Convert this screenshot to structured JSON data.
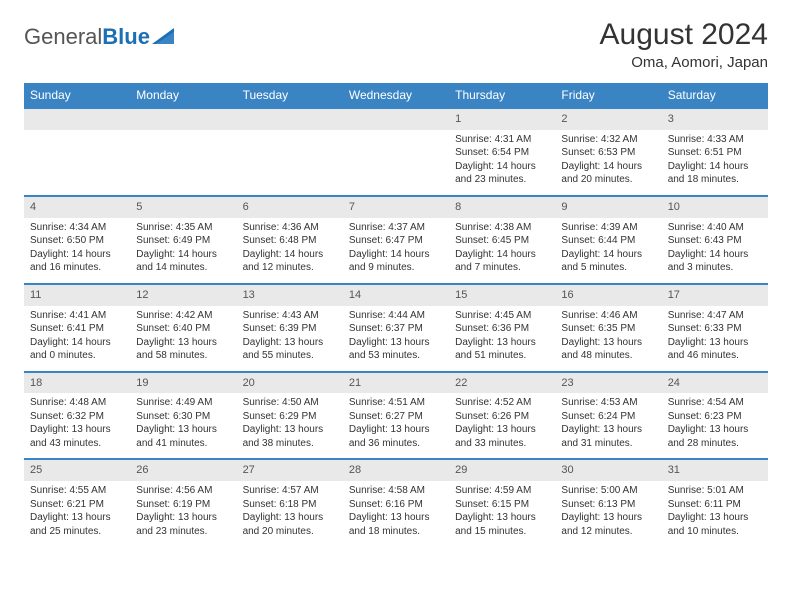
{
  "brand": {
    "part1": "General",
    "part2": "Blue"
  },
  "header": {
    "month": "August 2024",
    "location": "Oma, Aomori, Japan"
  },
  "colors": {
    "header_bg": "#3b84c4",
    "band_bg": "#e9e9e9",
    "border": "#3b84c4",
    "text": "#333333",
    "brand_blue": "#1b6fb5"
  },
  "dayNames": [
    "Sunday",
    "Monday",
    "Tuesday",
    "Wednesday",
    "Thursday",
    "Friday",
    "Saturday"
  ],
  "weeks": [
    [
      null,
      null,
      null,
      null,
      {
        "n": "1",
        "sr": "Sunrise: 4:31 AM",
        "ss": "Sunset: 6:54 PM",
        "dl": "Daylight: 14 hours and 23 minutes."
      },
      {
        "n": "2",
        "sr": "Sunrise: 4:32 AM",
        "ss": "Sunset: 6:53 PM",
        "dl": "Daylight: 14 hours and 20 minutes."
      },
      {
        "n": "3",
        "sr": "Sunrise: 4:33 AM",
        "ss": "Sunset: 6:51 PM",
        "dl": "Daylight: 14 hours and 18 minutes."
      }
    ],
    [
      {
        "n": "4",
        "sr": "Sunrise: 4:34 AM",
        "ss": "Sunset: 6:50 PM",
        "dl": "Daylight: 14 hours and 16 minutes."
      },
      {
        "n": "5",
        "sr": "Sunrise: 4:35 AM",
        "ss": "Sunset: 6:49 PM",
        "dl": "Daylight: 14 hours and 14 minutes."
      },
      {
        "n": "6",
        "sr": "Sunrise: 4:36 AM",
        "ss": "Sunset: 6:48 PM",
        "dl": "Daylight: 14 hours and 12 minutes."
      },
      {
        "n": "7",
        "sr": "Sunrise: 4:37 AM",
        "ss": "Sunset: 6:47 PM",
        "dl": "Daylight: 14 hours and 9 minutes."
      },
      {
        "n": "8",
        "sr": "Sunrise: 4:38 AM",
        "ss": "Sunset: 6:45 PM",
        "dl": "Daylight: 14 hours and 7 minutes."
      },
      {
        "n": "9",
        "sr": "Sunrise: 4:39 AM",
        "ss": "Sunset: 6:44 PM",
        "dl": "Daylight: 14 hours and 5 minutes."
      },
      {
        "n": "10",
        "sr": "Sunrise: 4:40 AM",
        "ss": "Sunset: 6:43 PM",
        "dl": "Daylight: 14 hours and 3 minutes."
      }
    ],
    [
      {
        "n": "11",
        "sr": "Sunrise: 4:41 AM",
        "ss": "Sunset: 6:41 PM",
        "dl": "Daylight: 14 hours and 0 minutes."
      },
      {
        "n": "12",
        "sr": "Sunrise: 4:42 AM",
        "ss": "Sunset: 6:40 PM",
        "dl": "Daylight: 13 hours and 58 minutes."
      },
      {
        "n": "13",
        "sr": "Sunrise: 4:43 AM",
        "ss": "Sunset: 6:39 PM",
        "dl": "Daylight: 13 hours and 55 minutes."
      },
      {
        "n": "14",
        "sr": "Sunrise: 4:44 AM",
        "ss": "Sunset: 6:37 PM",
        "dl": "Daylight: 13 hours and 53 minutes."
      },
      {
        "n": "15",
        "sr": "Sunrise: 4:45 AM",
        "ss": "Sunset: 6:36 PM",
        "dl": "Daylight: 13 hours and 51 minutes."
      },
      {
        "n": "16",
        "sr": "Sunrise: 4:46 AM",
        "ss": "Sunset: 6:35 PM",
        "dl": "Daylight: 13 hours and 48 minutes."
      },
      {
        "n": "17",
        "sr": "Sunrise: 4:47 AM",
        "ss": "Sunset: 6:33 PM",
        "dl": "Daylight: 13 hours and 46 minutes."
      }
    ],
    [
      {
        "n": "18",
        "sr": "Sunrise: 4:48 AM",
        "ss": "Sunset: 6:32 PM",
        "dl": "Daylight: 13 hours and 43 minutes."
      },
      {
        "n": "19",
        "sr": "Sunrise: 4:49 AM",
        "ss": "Sunset: 6:30 PM",
        "dl": "Daylight: 13 hours and 41 minutes."
      },
      {
        "n": "20",
        "sr": "Sunrise: 4:50 AM",
        "ss": "Sunset: 6:29 PM",
        "dl": "Daylight: 13 hours and 38 minutes."
      },
      {
        "n": "21",
        "sr": "Sunrise: 4:51 AM",
        "ss": "Sunset: 6:27 PM",
        "dl": "Daylight: 13 hours and 36 minutes."
      },
      {
        "n": "22",
        "sr": "Sunrise: 4:52 AM",
        "ss": "Sunset: 6:26 PM",
        "dl": "Daylight: 13 hours and 33 minutes."
      },
      {
        "n": "23",
        "sr": "Sunrise: 4:53 AM",
        "ss": "Sunset: 6:24 PM",
        "dl": "Daylight: 13 hours and 31 minutes."
      },
      {
        "n": "24",
        "sr": "Sunrise: 4:54 AM",
        "ss": "Sunset: 6:23 PM",
        "dl": "Daylight: 13 hours and 28 minutes."
      }
    ],
    [
      {
        "n": "25",
        "sr": "Sunrise: 4:55 AM",
        "ss": "Sunset: 6:21 PM",
        "dl": "Daylight: 13 hours and 25 minutes."
      },
      {
        "n": "26",
        "sr": "Sunrise: 4:56 AM",
        "ss": "Sunset: 6:19 PM",
        "dl": "Daylight: 13 hours and 23 minutes."
      },
      {
        "n": "27",
        "sr": "Sunrise: 4:57 AM",
        "ss": "Sunset: 6:18 PM",
        "dl": "Daylight: 13 hours and 20 minutes."
      },
      {
        "n": "28",
        "sr": "Sunrise: 4:58 AM",
        "ss": "Sunset: 6:16 PM",
        "dl": "Daylight: 13 hours and 18 minutes."
      },
      {
        "n": "29",
        "sr": "Sunrise: 4:59 AM",
        "ss": "Sunset: 6:15 PM",
        "dl": "Daylight: 13 hours and 15 minutes."
      },
      {
        "n": "30",
        "sr": "Sunrise: 5:00 AM",
        "ss": "Sunset: 6:13 PM",
        "dl": "Daylight: 13 hours and 12 minutes."
      },
      {
        "n": "31",
        "sr": "Sunrise: 5:01 AM",
        "ss": "Sunset: 6:11 PM",
        "dl": "Daylight: 13 hours and 10 minutes."
      }
    ]
  ]
}
